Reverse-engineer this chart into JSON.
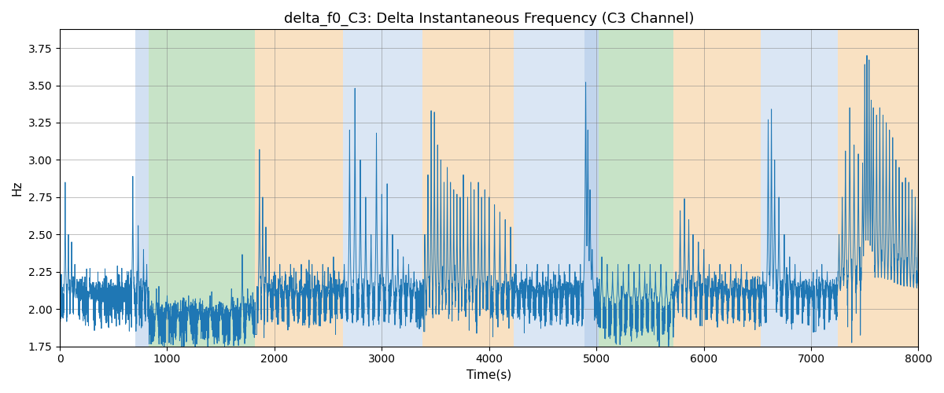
{
  "title": "delta_f0_C3: Delta Instantaneous Frequency (C3 Channel)",
  "xlabel": "Time(s)",
  "ylabel": "Hz",
  "xlim": [
    0,
    8000
  ],
  "ylim": [
    1.75,
    3.875
  ],
  "yticks": [
    1.75,
    2.0,
    2.25,
    2.5,
    2.75,
    3.0,
    3.25,
    3.5,
    3.75
  ],
  "xticks": [
    0,
    1000,
    2000,
    3000,
    4000,
    5000,
    6000,
    7000,
    8000
  ],
  "line_color": "#1f77b4",
  "line_width": 0.7,
  "background_color": "#ffffff",
  "bands": [
    {
      "xmin": 700,
      "xmax": 830,
      "color": "#adc8e8",
      "alpha": 0.55
    },
    {
      "xmin": 830,
      "xmax": 1820,
      "color": "#90c990",
      "alpha": 0.5
    },
    {
      "xmin": 1820,
      "xmax": 2640,
      "color": "#f5c990",
      "alpha": 0.55
    },
    {
      "xmin": 2640,
      "xmax": 3380,
      "color": "#adc8e8",
      "alpha": 0.45
    },
    {
      "xmin": 3380,
      "xmax": 4230,
      "color": "#f5c990",
      "alpha": 0.55
    },
    {
      "xmin": 4230,
      "xmax": 4890,
      "color": "#adc8e8",
      "alpha": 0.45
    },
    {
      "xmin": 4890,
      "xmax": 5020,
      "color": "#adc8e8",
      "alpha": 0.75
    },
    {
      "xmin": 5020,
      "xmax": 5720,
      "color": "#90c990",
      "alpha": 0.5
    },
    {
      "xmin": 5720,
      "xmax": 6530,
      "color": "#f5c990",
      "alpha": 0.55
    },
    {
      "xmin": 6530,
      "xmax": 7250,
      "color": "#adc8e8",
      "alpha": 0.45
    },
    {
      "xmin": 7250,
      "xmax": 8000,
      "color": "#f5c990",
      "alpha": 0.55
    }
  ],
  "figsize": [
    12.0,
    5.0
  ],
  "dpi": 100
}
